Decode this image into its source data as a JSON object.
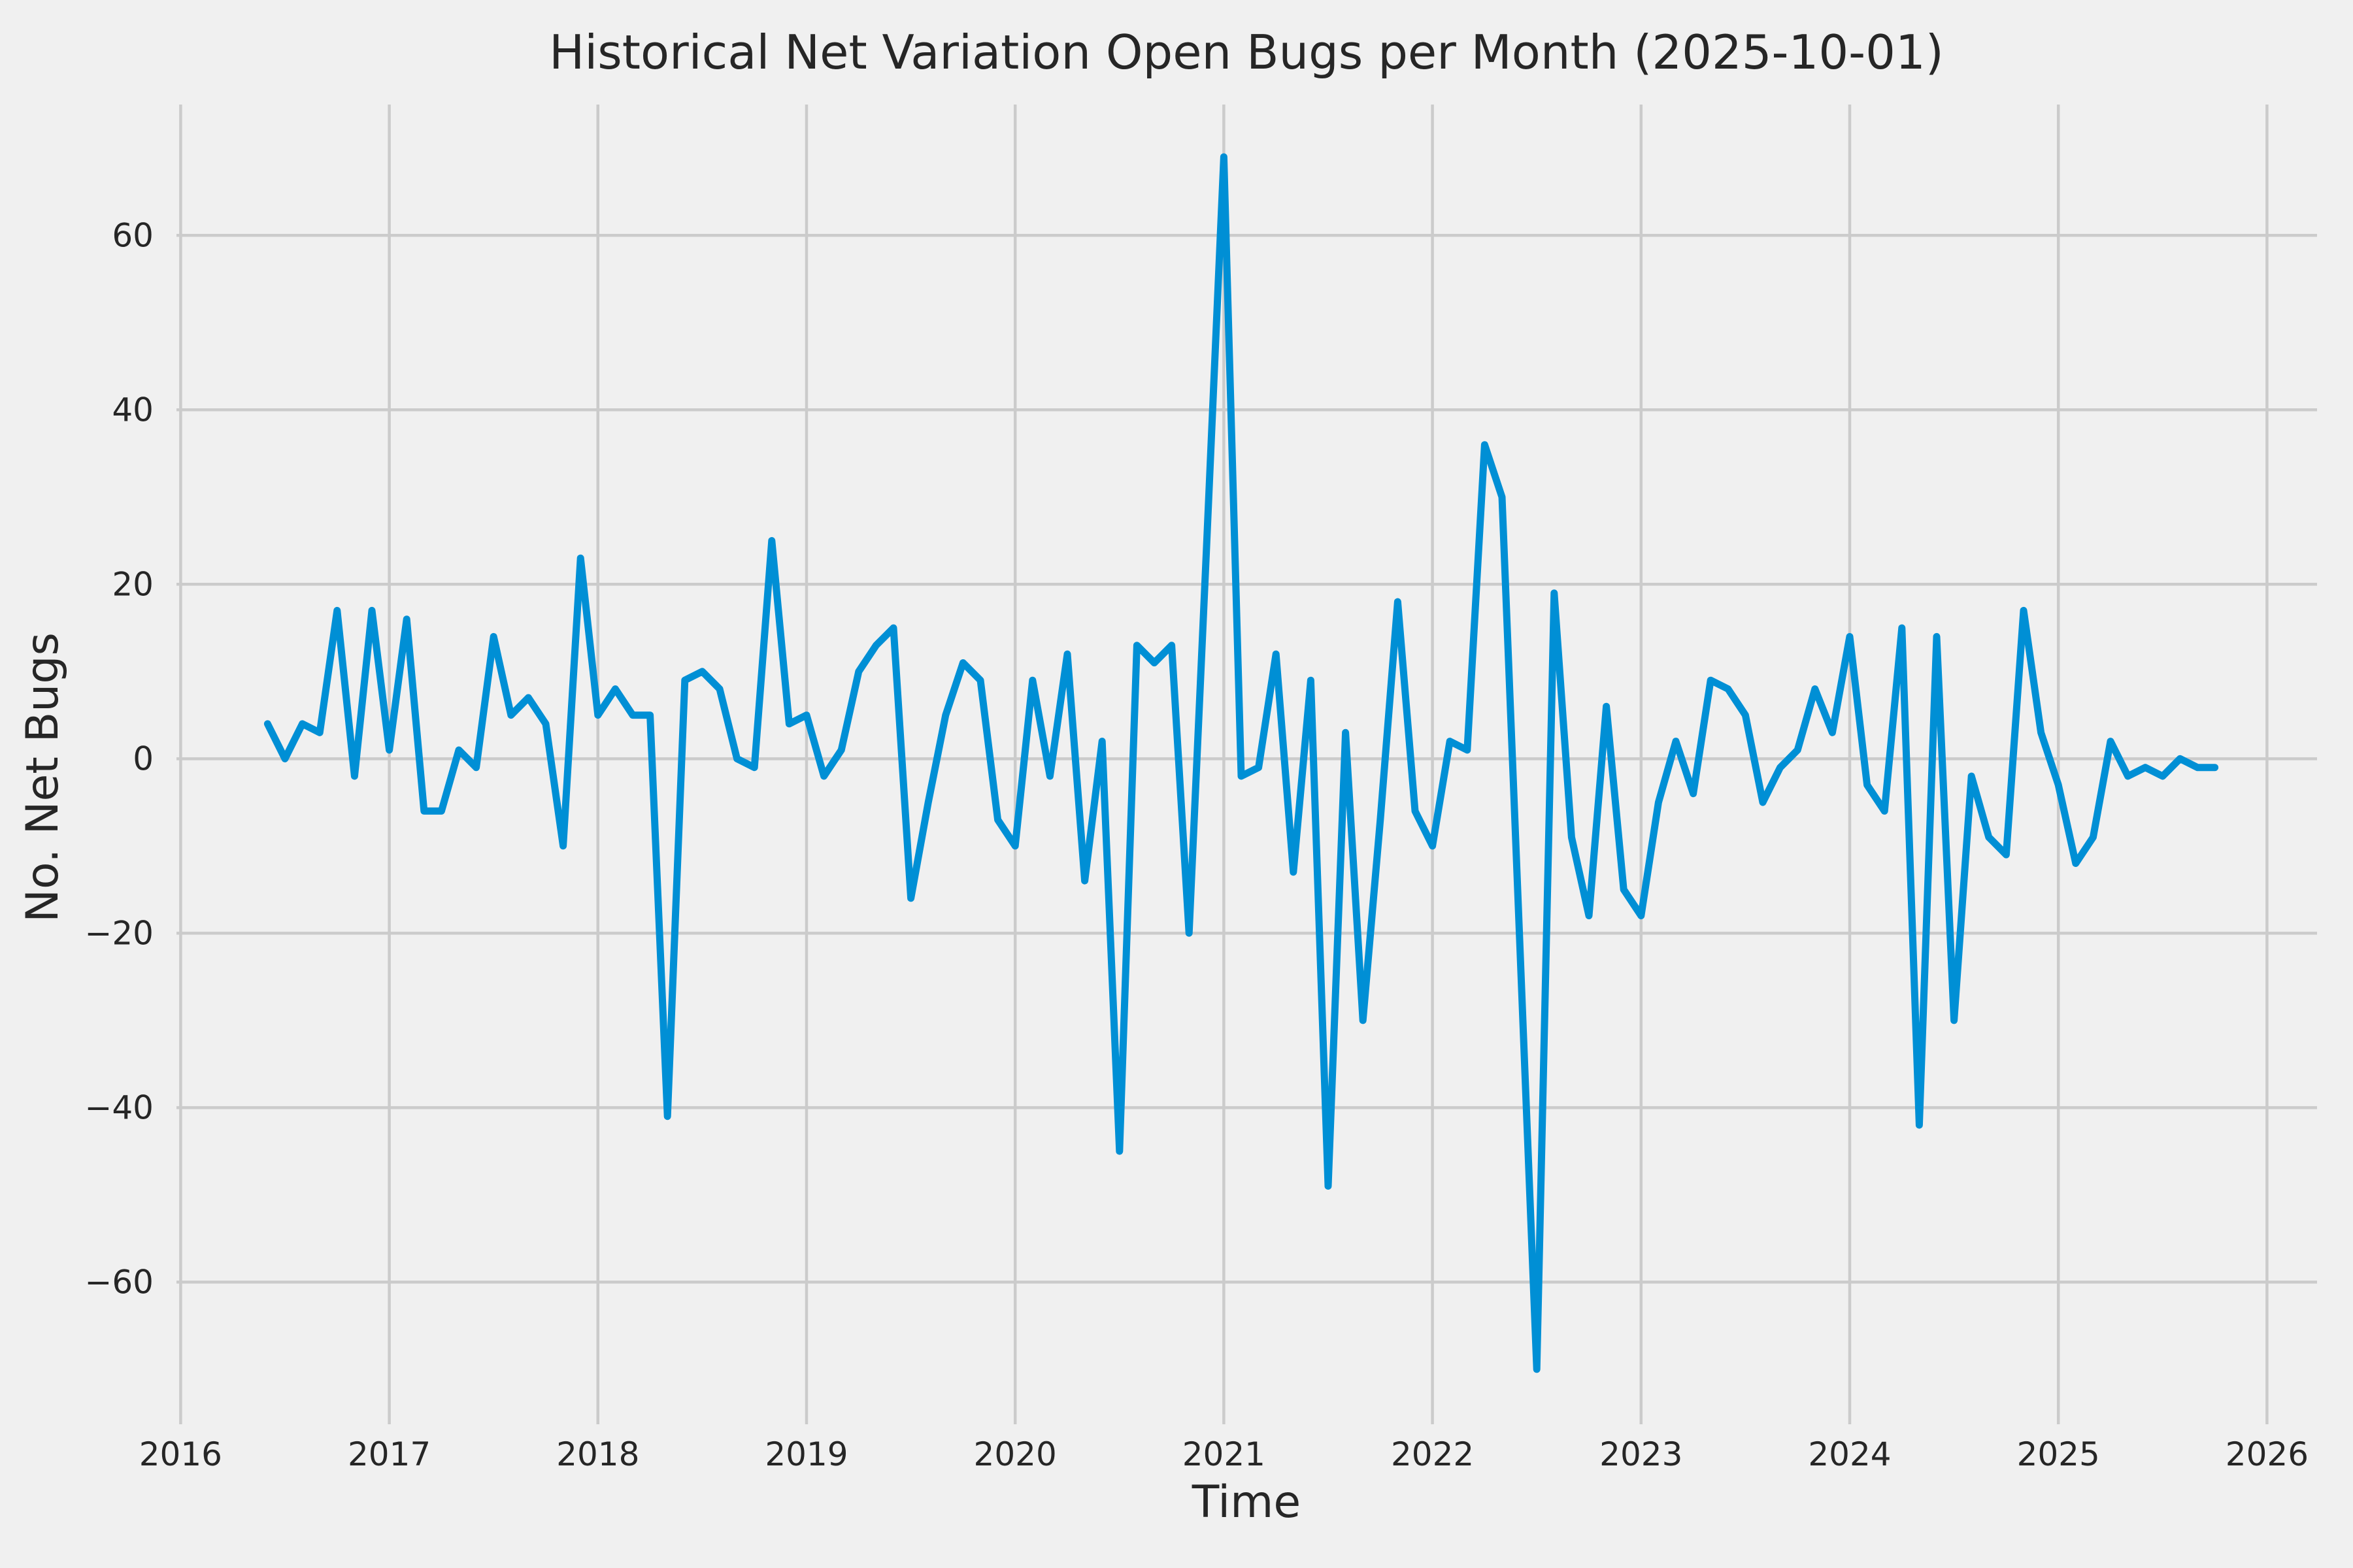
{
  "title": "Historical Net Variation Open Bugs per Month (2025-10-01)",
  "axes": {
    "xlabel": "Time",
    "ylabel": "No. Net Bugs"
  },
  "colors": {
    "background": "#f0f0f0",
    "grid": "#cbcbcb",
    "line": "#008fd5",
    "text": "#262626"
  },
  "chart_data": {
    "type": "line",
    "title": "Historical Net Variation Open Bugs per Month (2025-10-01)",
    "xlabel": "Time",
    "ylabel": "No. Net Bugs",
    "grid": true,
    "legend": false,
    "line_color": "#008fd5",
    "xlim": [
      2015.98,
      2026.24
    ],
    "ylim": [
      -76.3,
      75.0
    ],
    "x_tick_labels": [
      "2016",
      "2017",
      "2018",
      "2019",
      "2020",
      "2021",
      "2022",
      "2023",
      "2024",
      "2025",
      "2026"
    ],
    "x_tick_values": [
      2016,
      2017,
      2018,
      2019,
      2020,
      2021,
      2022,
      2023,
      2024,
      2025,
      2026
    ],
    "y_tick_labels": [
      "−60",
      "−40",
      "−20",
      "0",
      "20",
      "40",
      "60"
    ],
    "y_tick_values": [
      -60,
      -40,
      -20,
      0,
      20,
      40,
      60
    ],
    "x": [
      "2016-06",
      "2016-07",
      "2016-08",
      "2016-09",
      "2016-10",
      "2016-11",
      "2016-12",
      "2017-01",
      "2017-02",
      "2017-03",
      "2017-04",
      "2017-05",
      "2017-06",
      "2017-07",
      "2017-08",
      "2017-09",
      "2017-10",
      "2017-11",
      "2017-12",
      "2018-01",
      "2018-02",
      "2018-03",
      "2018-04",
      "2018-05",
      "2018-06",
      "2018-07",
      "2018-08",
      "2018-09",
      "2018-10",
      "2018-11",
      "2018-12",
      "2019-01",
      "2019-02",
      "2019-03",
      "2019-04",
      "2019-05",
      "2019-06",
      "2019-07",
      "2019-08",
      "2019-09",
      "2019-10",
      "2019-11",
      "2019-12",
      "2020-01",
      "2020-02",
      "2020-03",
      "2020-04",
      "2020-05",
      "2020-06",
      "2020-07",
      "2020-08",
      "2020-09",
      "2020-10",
      "2020-11",
      "2020-12",
      "2021-01",
      "2021-02",
      "2021-03",
      "2021-04",
      "2021-05",
      "2021-06",
      "2021-07",
      "2021-08",
      "2021-09",
      "2021-10",
      "2021-11",
      "2021-12",
      "2022-01",
      "2022-02",
      "2022-03",
      "2022-04",
      "2022-05",
      "2022-06",
      "2022-07",
      "2022-08",
      "2022-09",
      "2022-10",
      "2022-11",
      "2022-12",
      "2023-01",
      "2023-02",
      "2023-03",
      "2023-04",
      "2023-05",
      "2023-06",
      "2023-07",
      "2023-08",
      "2023-09",
      "2023-10",
      "2023-11",
      "2023-12",
      "2024-01",
      "2024-02",
      "2024-03",
      "2024-04",
      "2024-05",
      "2024-06",
      "2024-07",
      "2024-08",
      "2024-09",
      "2024-10",
      "2024-11",
      "2024-12",
      "2025-01",
      "2025-02",
      "2025-03",
      "2025-04",
      "2025-05",
      "2025-06",
      "2025-07",
      "2025-08",
      "2025-09",
      "2025-10"
    ],
    "values": [
      4,
      0,
      4,
      3,
      17,
      -2,
      17,
      1,
      16,
      -6,
      -6,
      1,
      -1,
      14,
      5,
      7,
      4,
      -10,
      23,
      5,
      8,
      5,
      5,
      -41,
      9,
      10,
      8,
      0,
      -1,
      25,
      4,
      5,
      -2,
      1,
      10,
      13,
      15,
      -16,
      -5,
      5,
      11,
      9,
      -7,
      -10,
      9,
      -2,
      12,
      -14,
      2,
      -45,
      13,
      11,
      13,
      -20,
      24,
      69,
      -2,
      -1,
      12,
      -13,
      9,
      -49,
      3,
      -30,
      -7,
      18,
      -6,
      -10,
      2,
      1,
      36,
      30,
      -20,
      -70,
      19,
      -9,
      -18,
      6,
      -15,
      -18,
      -5,
      2,
      -4,
      9,
      8,
      5,
      -5,
      -1,
      1,
      8,
      3,
      14,
      -3,
      -6,
      15,
      -42,
      14,
      -30,
      -2,
      -9,
      -11,
      17,
      3,
      -3,
      -12,
      -9,
      2,
      -2,
      -1,
      -2,
      0,
      -1,
      -1
    ]
  }
}
